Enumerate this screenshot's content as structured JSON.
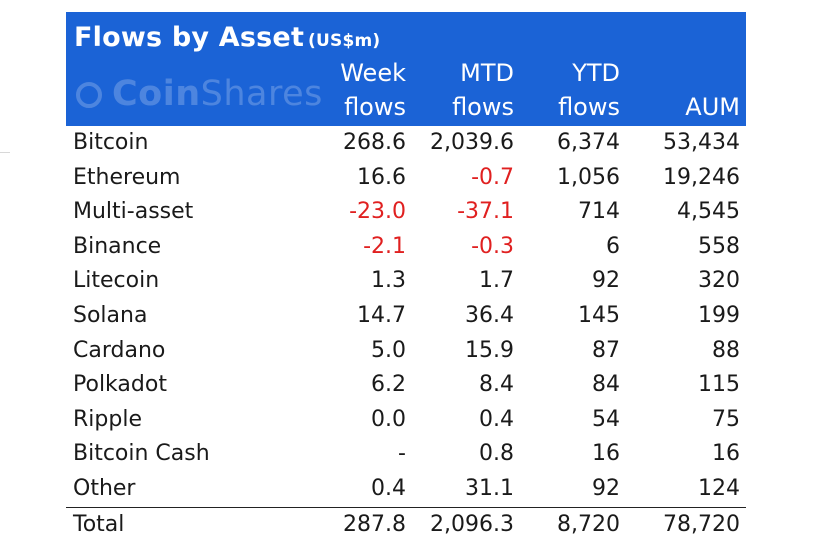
{
  "header": {
    "title": "Flows by Asset",
    "unit": "(US$m)",
    "watermark_bold": "Coin",
    "watermark_light": "Shares",
    "col_week_1": "Week",
    "col_week_2": "flows",
    "col_mtd_1": "MTD",
    "col_mtd_2": "flows",
    "col_ytd_1": "YTD",
    "col_ytd_2": "flows",
    "col_aum": "AUM"
  },
  "colors": {
    "header_bg": "#1b63d6",
    "negative": "#e02020"
  },
  "chart_data": {
    "type": "table",
    "title": "Flows by Asset (US$m)",
    "columns": [
      "Week flows",
      "MTD flows",
      "YTD flows",
      "AUM"
    ],
    "rows": [
      {
        "asset": "Bitcoin",
        "week": "268.6",
        "mtd": "2,039.6",
        "ytd": "6,374",
        "aum": "53,434"
      },
      {
        "asset": "Ethereum",
        "week": "16.6",
        "mtd": "-0.7",
        "ytd": "1,056",
        "aum": "19,246"
      },
      {
        "asset": "Multi-asset",
        "week": "-23.0",
        "mtd": "-37.1",
        "ytd": "714",
        "aum": "4,545"
      },
      {
        "asset": "Binance",
        "week": "-2.1",
        "mtd": "-0.3",
        "ytd": "6",
        "aum": "558"
      },
      {
        "asset": "Litecoin",
        "week": "1.3",
        "mtd": "1.7",
        "ytd": "92",
        "aum": "320"
      },
      {
        "asset": "Solana",
        "week": "14.7",
        "mtd": "36.4",
        "ytd": "145",
        "aum": "199"
      },
      {
        "asset": "Cardano",
        "week": "5.0",
        "mtd": "15.9",
        "ytd": "87",
        "aum": "88"
      },
      {
        "asset": "Polkadot",
        "week": "6.2",
        "mtd": "8.4",
        "ytd": "84",
        "aum": "115"
      },
      {
        "asset": "Ripple",
        "week": "0.0",
        "mtd": "0.4",
        "ytd": "54",
        "aum": "75"
      },
      {
        "asset": "Bitcoin Cash",
        "week": "-",
        "mtd": "0.8",
        "ytd": "16",
        "aum": "16"
      },
      {
        "asset": "Other",
        "week": "0.4",
        "mtd": "31.1",
        "ytd": "92",
        "aum": "124"
      }
    ],
    "total": {
      "asset": "Total",
      "week": "287.8",
      "mtd": "2,096.3",
      "ytd": "8,720",
      "aum": "78,720"
    }
  }
}
